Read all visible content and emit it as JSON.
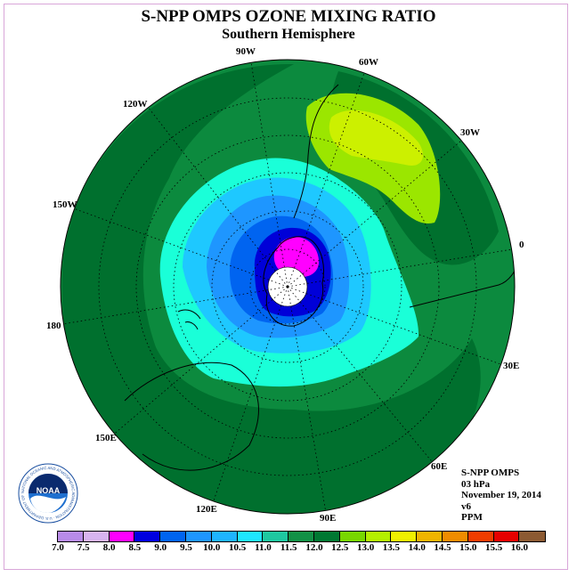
{
  "title": "S-NPP OMPS OZONE MIXING RATIO",
  "subtitle": "Southern Hemisphere",
  "longitudes": {
    "w90": "90W",
    "w60": "60W",
    "w120": "120W",
    "w30": "30W",
    "w150": "150W",
    "zero": "0",
    "d180": "180",
    "e30": "30E",
    "e150": "150E",
    "e60": "60E",
    "e120": "120E",
    "e90": "90E"
  },
  "info": {
    "instrument": "S-NPP OMPS",
    "level": "03 hPa",
    "date": "November 19, 2014",
    "version": "v6",
    "units": "PPM"
  },
  "logo": {
    "text": "NOAA",
    "ring_text": "NATIONAL OCEANIC AND ATMOSPHERIC ADMINISTRATION · U.S. DEPARTMENT OF COMMERCE"
  },
  "colorbar": {
    "labels": [
      "7.0",
      "7.5",
      "8.0",
      "8.5",
      "9.0",
      "9.5",
      "10.0",
      "10.5",
      "11.0",
      "11.5",
      "12.0",
      "12.5",
      "13.0",
      "13.5",
      "14.0",
      "14.5",
      "15.0",
      "15.5",
      "16.0"
    ],
    "colors": [
      "#b88be8",
      "#d8b4f0",
      "#ff00ff",
      "#0000e0",
      "#0064f0",
      "#1e96ff",
      "#1eb4ff",
      "#1ee6ff",
      "#1ec8a0",
      "#129146",
      "#007832",
      "#78d700",
      "#b4f000",
      "#f0f000",
      "#f0b400",
      "#f08c00",
      "#f03c00",
      "#e60000",
      "#8c5a32"
    ]
  },
  "map_colors": {
    "bg_green": "#0c8a3e",
    "dark_green": "#00702e",
    "teal": "#1affd8",
    "cyan": "#1ec8ff",
    "sky": "#1e96ff",
    "blue": "#0064f0",
    "deep_blue": "#0000d8",
    "magenta": "#ff00ff",
    "lime": "#9be600",
    "yellow_lime": "#ccf000"
  }
}
